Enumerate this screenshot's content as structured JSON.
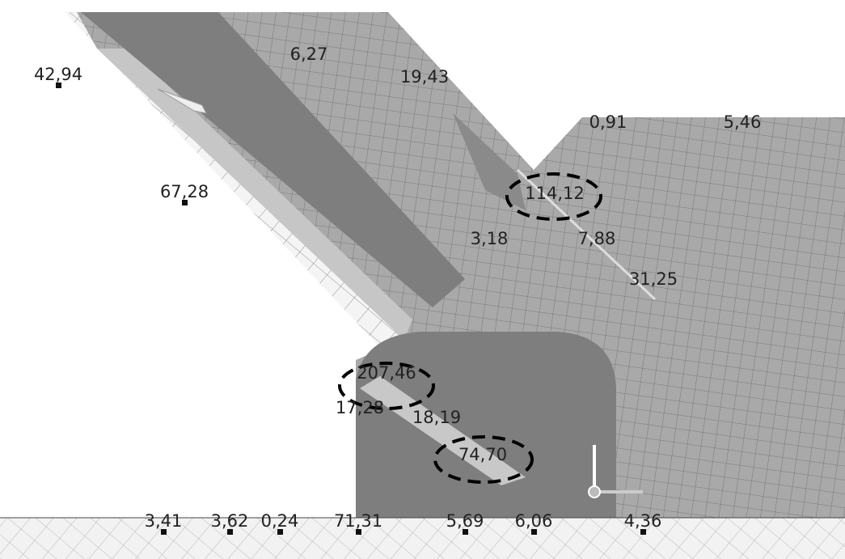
{
  "labels": [
    "42,94",
    "6,27",
    "19,43",
    "0,91",
    "5,46",
    "67,28",
    "114,12",
    "3,18",
    "7,88",
    "31,25",
    "207,46",
    "17,28",
    "18,19",
    "74,70",
    "3,41",
    "3,62",
    "0,24",
    "71,31",
    "5,69",
    "6,06",
    "4,36"
  ]
}
